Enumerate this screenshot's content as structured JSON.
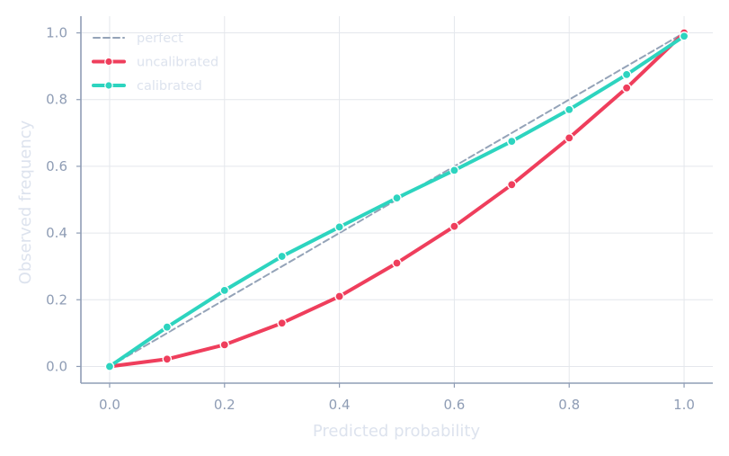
{
  "chart_data": {
    "type": "line",
    "xlabel": "Predicted probability",
    "ylabel": "Observed frequency",
    "xlim": [
      -0.05,
      1.05
    ],
    "ylim": [
      -0.05,
      1.05
    ],
    "xticks": [
      "0.0",
      "0.2",
      "0.4",
      "0.6",
      "0.8",
      "1.0"
    ],
    "yticks": [
      "0.0",
      "0.2",
      "0.4",
      "0.6",
      "0.8",
      "1.0"
    ],
    "grid": true,
    "legend_position": "top-left",
    "series": [
      {
        "name": "perfect",
        "style": "dashed",
        "color": "#94a3b8",
        "markers": false,
        "x": [
          0.0,
          1.0
        ],
        "y": [
          0.0,
          1.0
        ]
      },
      {
        "name": "uncalibrated",
        "style": "solid",
        "color": "#ef3e5c",
        "markers": true,
        "x": [
          0.0,
          0.1,
          0.2,
          0.3,
          0.4,
          0.5,
          0.6,
          0.7,
          0.8,
          0.9,
          1.0
        ],
        "y": [
          0.0,
          0.022,
          0.065,
          0.13,
          0.21,
          0.31,
          0.42,
          0.545,
          0.685,
          0.835,
          1.0
        ]
      },
      {
        "name": "calibrated",
        "style": "solid",
        "color": "#2dd4bf",
        "markers": true,
        "x": [
          0.0,
          0.1,
          0.2,
          0.3,
          0.4,
          0.5,
          0.6,
          0.7,
          0.8,
          0.9,
          1.0
        ],
        "y": [
          0.0,
          0.118,
          0.228,
          0.33,
          0.418,
          0.505,
          0.588,
          0.675,
          0.77,
          0.875,
          0.99
        ]
      }
    ]
  }
}
